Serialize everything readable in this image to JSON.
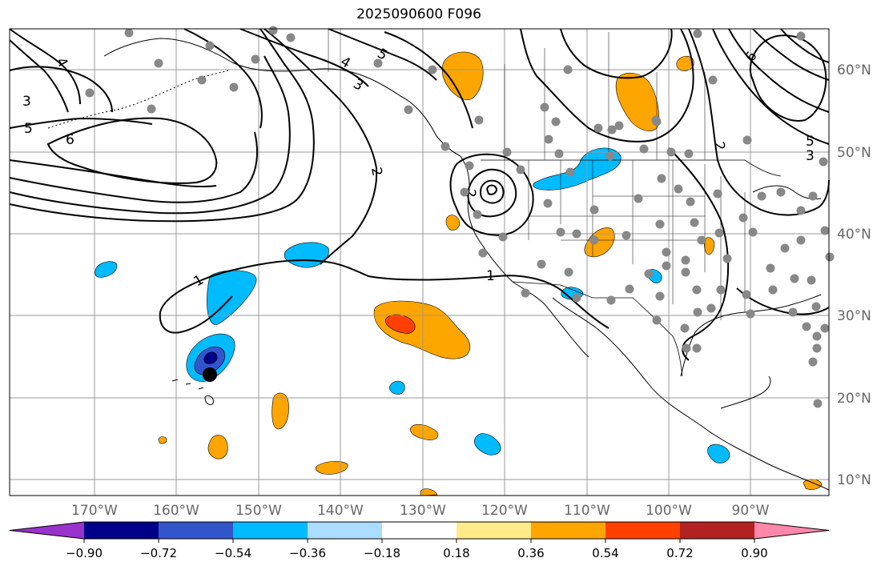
{
  "title": "2025090600 F096",
  "lon_labels": [
    "170°W",
    "160°W",
    "150°W",
    "140°W",
    "130°W",
    "120°W",
    "110°W",
    "100°W",
    "90°W"
  ],
  "lat_labels": [
    "60°N",
    "50°N",
    "40°N",
    "30°N",
    "20°N",
    "10°N"
  ],
  "contour_labels": [
    "1",
    "2",
    "3",
    "4",
    "5",
    "6",
    "1",
    "2",
    "3",
    "4",
    "5",
    "6",
    "2",
    "3",
    "5"
  ],
  "colorbar": {
    "colors": [
      "#9933cc",
      "#000088",
      "#3355cc",
      "#00bbff",
      "#aaddff",
      "#ffffff",
      "#ffeb88",
      "#ffa500",
      "#ff4000",
      "#b22222",
      "#ff88aa"
    ],
    "tick_labels": [
      "−0.90",
      "−0.72",
      "−0.54",
      "−0.36",
      "−0.18",
      "0.18",
      "0.36",
      "0.54",
      "0.72",
      "0.90"
    ]
  },
  "colors": {
    "grid": "#999999",
    "station": "#888888",
    "contour": "#000000",
    "coast": "#000000"
  }
}
